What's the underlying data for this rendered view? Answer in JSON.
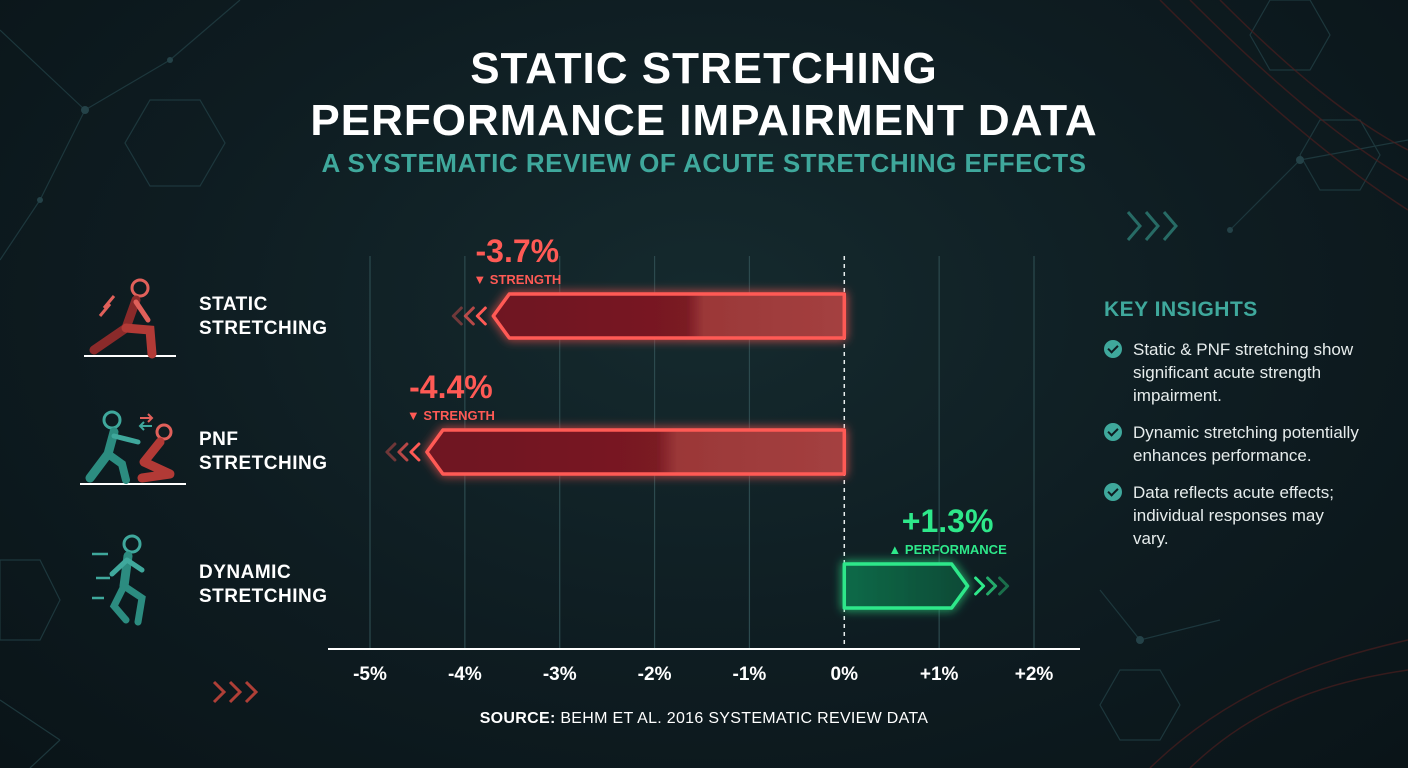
{
  "title_line1": "STATIC STRETCHING",
  "title_line2": "PERFORMANCE IMPAIRMENT DATA",
  "subtitle": "A SYSTEMATIC REVIEW OF ACUTE STRETCHING EFFECTS",
  "chart_data": {
    "type": "bar",
    "orientation": "horizontal",
    "categories": [
      "STATIC STRETCHING",
      "PNF STRETCHING",
      "DYNAMIC STRETCHING"
    ],
    "values": [
      -3.7,
      -4.4,
      1.3
    ],
    "value_labels": [
      "-3.7%",
      "-4.4%",
      "+1.3%"
    ],
    "sublabels": [
      "▼ STRENGTH",
      "▼ STRENGTH",
      "▲ PERFORMANCE"
    ],
    "xlim": [
      -5,
      2
    ],
    "x_ticks": [
      -5,
      -4,
      -3,
      -2,
      -1,
      0,
      1,
      2
    ],
    "x_tick_labels": [
      "-5%",
      "-4%",
      "-3%",
      "-2%",
      "-1%",
      "0%",
      "+1%",
      "+2%"
    ],
    "grid": true,
    "colors": {
      "negative": "#ff5a55",
      "positive": "#2ee88a"
    }
  },
  "rows": [
    {
      "line1": "STATIC",
      "line2": "STRETCHING",
      "icon": "lunge-stretch-icon"
    },
    {
      "line1": "PNF",
      "line2": "STRETCHING",
      "icon": "partner-stretch-icon"
    },
    {
      "line1": "DYNAMIC",
      "line2": "STRETCHING",
      "icon": "running-figure-icon"
    }
  ],
  "insights": {
    "title": "KEY INSIGHTS",
    "items": [
      "Static & PNF stretching show significant acute strength impairment.",
      "Dynamic stretching potentially enhances performance.",
      "Data reflects acute effects; individual responses may vary."
    ]
  },
  "source": {
    "label": "SOURCE:",
    "text": " BEHM ET AL. 2016 SYSTEMATIC REVIEW DATA"
  },
  "colors": {
    "teal": "#3fa89c",
    "background": "#0e1c21"
  }
}
